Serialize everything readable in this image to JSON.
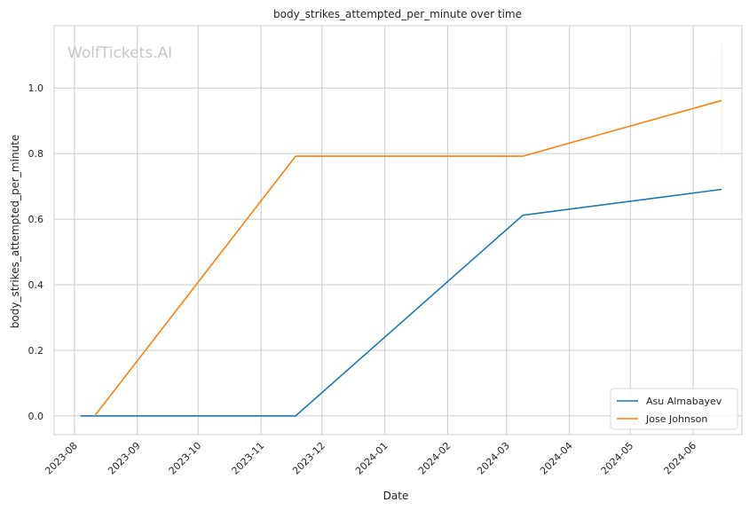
{
  "watermark": "WolfTickets.AI",
  "chart_data": {
    "type": "line",
    "title": "body_strikes_attempted_per_minute over time",
    "xlabel": "Date",
    "ylabel": "body_strikes_attempted_per_minute",
    "x_ticks": [
      "2023-08",
      "2023-09",
      "2023-10",
      "2023-11",
      "2023-12",
      "2024-01",
      "2024-02",
      "2024-03",
      "2024-04",
      "2024-05",
      "2024-06"
    ],
    "y_ticks": [
      "0.0",
      "0.2",
      "0.4",
      "0.6",
      "0.8",
      "1.0"
    ],
    "xlim": [
      "2023-07-22",
      "2024-06-25"
    ],
    "ylim": [
      -0.057,
      1.19
    ],
    "grid": true,
    "legend_position": "lower-right",
    "series": [
      {
        "name": "Asu Almabayev",
        "color": "#1f77b4",
        "points": [
          {
            "x": "2023-08-04",
            "y": 0.0
          },
          {
            "x": "2023-11-18",
            "y": 0.0
          },
          {
            "x": "2024-03-09",
            "y": 0.612
          },
          {
            "x": "2024-06-15",
            "y": 0.691
          }
        ]
      },
      {
        "name": "Jose Johnson",
        "color": "#ff7f0e",
        "points": [
          {
            "x": "2023-08-11",
            "y": 0.0
          },
          {
            "x": "2023-11-18",
            "y": 0.792
          },
          {
            "x": "2024-03-09",
            "y": 0.792
          },
          {
            "x": "2024-06-15",
            "y": 0.962
          }
        ]
      }
    ]
  }
}
